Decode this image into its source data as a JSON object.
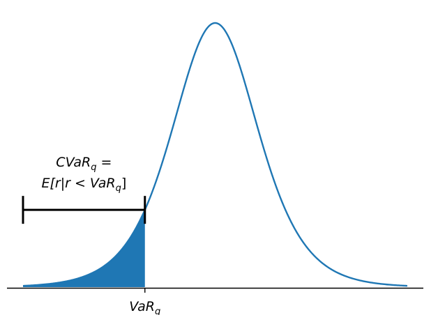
{
  "chart_data": {
    "type": "line",
    "description_free": true,
    "density": {
      "loc": 0,
      "scale": 1,
      "shape": "logistic"
    },
    "x_range": [
      -6.7,
      6.7
    ],
    "var_quantile_x": -2.45,
    "fill_color": "#1f77b4",
    "line_color": "#1f77b4",
    "axes": {
      "grid": false,
      "y_axis_visible": false,
      "x_ticks": 1
    },
    "labels": {
      "var_base": "VaR",
      "var_sub": "q",
      "cvar_line1_base": "CVaR",
      "cvar_line1_sub": "q",
      "cvar_line1_tail": " =",
      "cvar_line2_head": "E[r|r < VaR",
      "cvar_line2_sub": "q",
      "cvar_line2_tail": "]"
    }
  }
}
